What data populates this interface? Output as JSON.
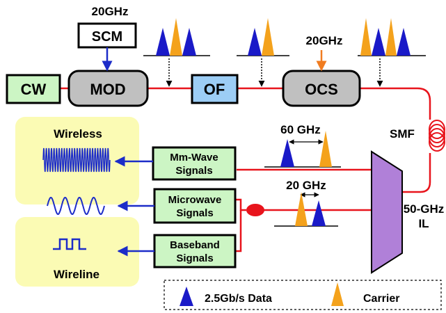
{
  "blocks": {
    "cw": "CW",
    "mod": "MOD",
    "of": "OF",
    "ocs": "OCS",
    "scm": "SCM",
    "mmwave_l1": "Mm-Wave",
    "mmwave_l2": "Signals",
    "microwave_l1": "Microwave",
    "microwave_l2": "Signals",
    "baseband_l1": "Baseband",
    "baseband_l2": "Signals"
  },
  "labels": {
    "scm_freq": "20GHz",
    "ocs_freq": "20GHz",
    "smf": "SMF",
    "il_l1": "50-GHz",
    "il_l2": "IL",
    "spacing_60": "60 GHz",
    "spacing_20": "20 GHz",
    "wireless": "Wireless",
    "wireline": "Wireline"
  },
  "legend": {
    "data": "2.5Gb/s Data",
    "carrier": "Carrier"
  },
  "colors": {
    "fiber": "#e8141c",
    "electrical": "#1c2cc8",
    "data_peak": "#1a1ac8",
    "carrier_peak": "#f4a21c",
    "arrow_ocs": "#f07c20",
    "cw_fill": "#ccf5c4",
    "mod_fill": "#c0c0c0",
    "of_fill": "#9ccdf5",
    "signal_box_fill": "#ccf5c4",
    "panel_fill": "#fbfbb4",
    "il_fill": "#b080d8"
  }
}
